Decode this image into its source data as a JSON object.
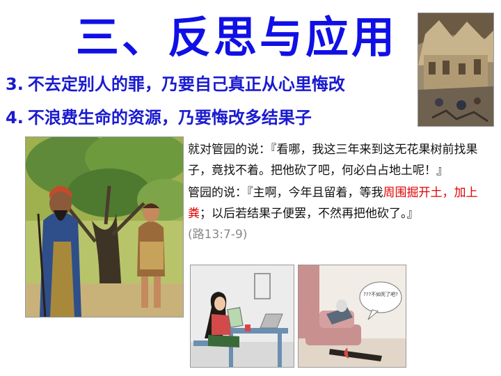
{
  "title": "三、反思与应用",
  "points": [
    {
      "num": "3.",
      "text": "不去定别人的罪，乃要自己真正从心里悔改"
    },
    {
      "num": "4.",
      "text": "不浪费生命的资源，乃要悔改多结果子"
    }
  ],
  "verse": {
    "para1": "就对管园的说：『看哪，我这三年来到这无花果树前找果子，竟找不着。把他砍了吧，何必白占地土呢！』",
    "para2_a": "管园的说：『主啊，今年且留着，等我",
    "para2_red": "周围掘开土，加上粪",
    "para2_b": "；以后若结果子便罢，不然再把他砍了。』",
    "reference": "(路13:7-9)"
  },
  "images": {
    "top_right": "city-illustration",
    "left": "fig-tree-painting",
    "bottom_middle": "comic-panel-desk",
    "bottom_right": "comic-panel-sofa",
    "speech_bubble_text": "???不如死了吧?"
  }
}
